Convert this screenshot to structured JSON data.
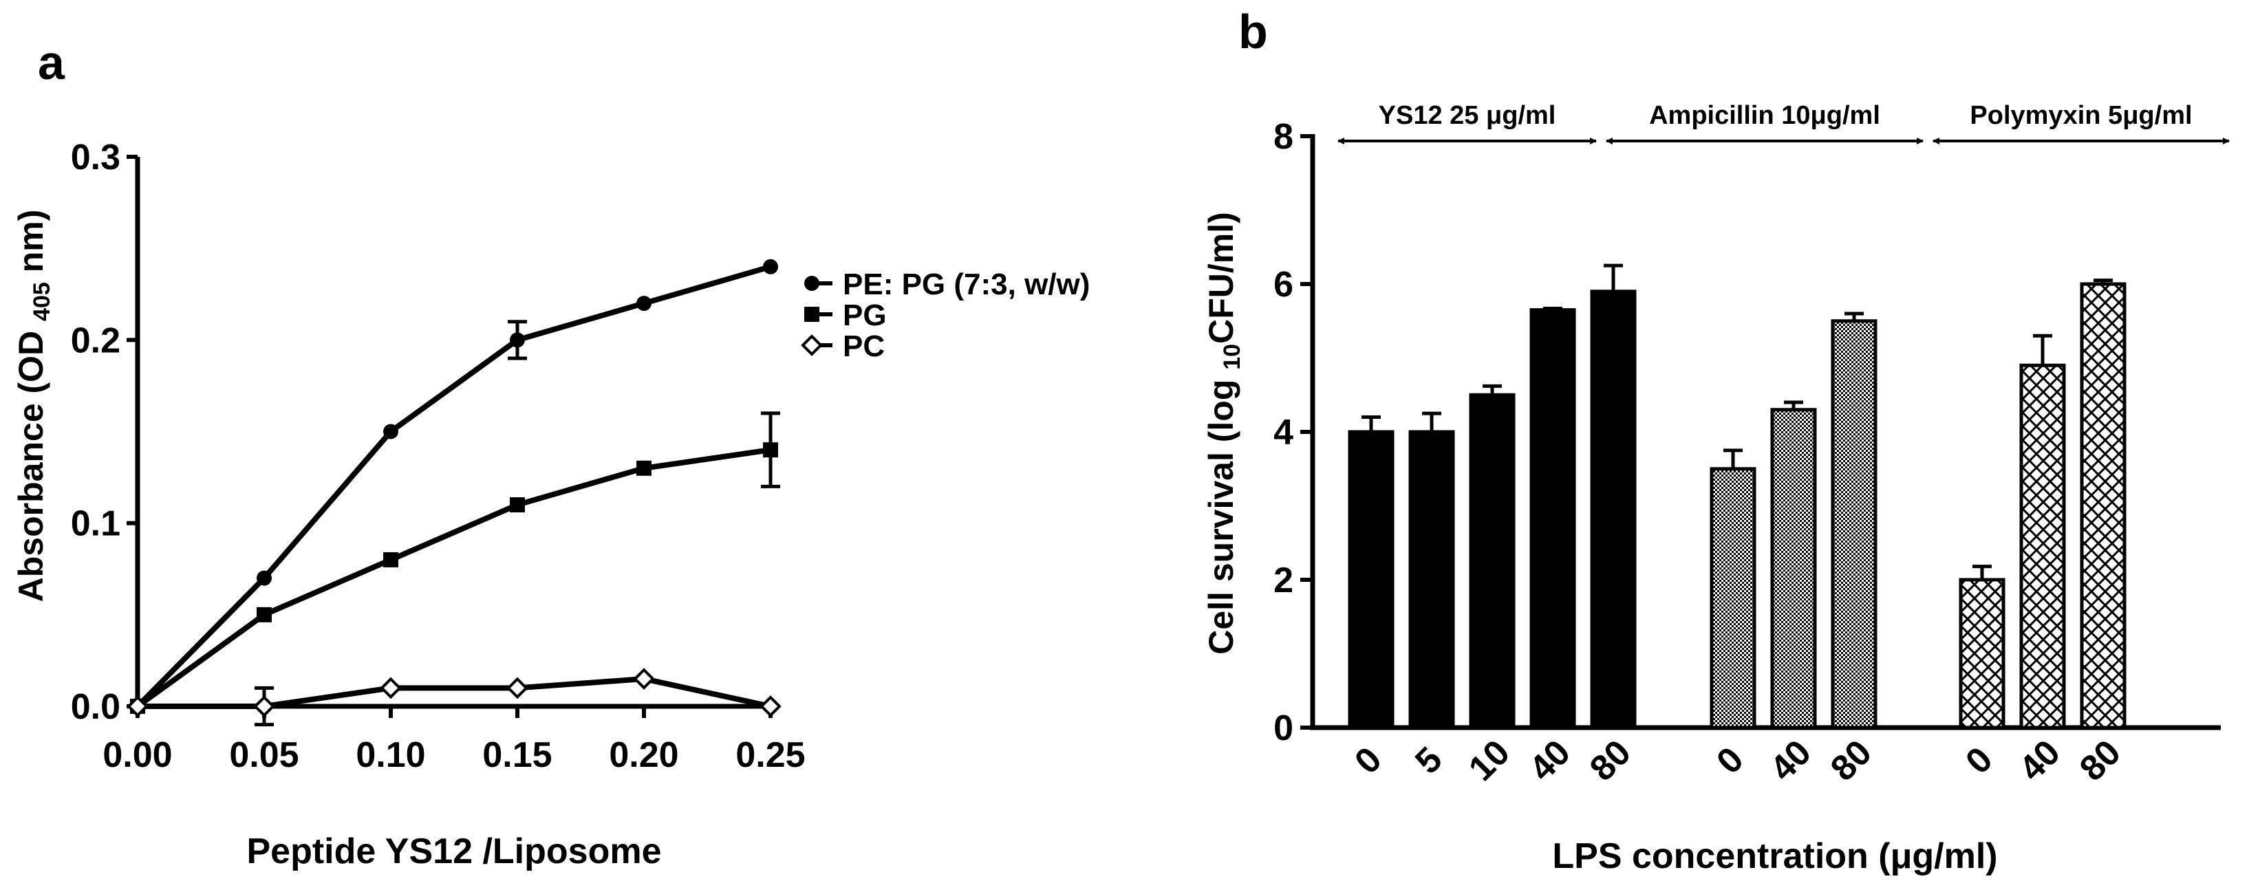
{
  "panels": {
    "a": {
      "label": "a"
    },
    "b": {
      "label": "b"
    }
  },
  "chart_data": [
    {
      "panel": "a",
      "type": "line",
      "xlabel": "Peptide YS12 /Liposome",
      "ylabel": "Absorbance (OD 405 nm)",
      "ylabel_parts": [
        "Absorbance (OD ",
        "405",
        " nm)"
      ],
      "xlim": [
        0,
        0.25
      ],
      "ylim": [
        0,
        0.3
      ],
      "x_ticks": [
        0,
        0.05,
        0.1,
        0.15,
        0.2,
        0.25
      ],
      "x_tick_labels": [
        "0.00",
        "0.05",
        "0.10",
        "0.15",
        "0.20",
        "0.25"
      ],
      "y_ticks": [
        0,
        0.1,
        0.2,
        0.3
      ],
      "y_tick_labels": [
        "0.0",
        "0.1",
        "0.2",
        "0.3"
      ],
      "legend_position": "right",
      "x": [
        0,
        0.05,
        0.1,
        0.15,
        0.2,
        0.25
      ],
      "series": [
        {
          "name": "PE: PG (7:3, w/w)",
          "marker": "circle",
          "values": [
            0,
            0.07,
            0.15,
            0.2,
            0.22,
            0.24
          ],
          "errors": [
            0,
            0,
            0,
            0.01,
            0,
            0
          ]
        },
        {
          "name": "PG",
          "marker": "square",
          "values": [
            0,
            0.05,
            0.08,
            0.11,
            0.13,
            0.14
          ],
          "errors": [
            0,
            0,
            0,
            0,
            0,
            0.02
          ]
        },
        {
          "name": "PC",
          "marker": "diamond",
          "values": [
            0,
            0,
            0.01,
            0.01,
            0.015,
            0
          ],
          "errors": [
            0,
            0.01,
            0,
            0,
            0,
            0
          ]
        }
      ]
    },
    {
      "panel": "b",
      "type": "bar",
      "xlabel": "LPS concentration (μg/ml)",
      "ylabel": "Cell survival (log 10CFU/ml)",
      "ylabel_parts": [
        "Cell survival (log ",
        "10",
        "CFU/ml)"
      ],
      "ylim": [
        0,
        8
      ],
      "y_ticks": [
        0,
        2,
        4,
        6,
        8
      ],
      "y_tick_labels": [
        "0",
        "2",
        "4",
        "6",
        "8"
      ],
      "groups": [
        {
          "name": "YS12 25 μg/ml",
          "pattern": "solid",
          "categories": [
            "0",
            "5",
            "10",
            "40",
            "80"
          ],
          "values": [
            4.0,
            4.0,
            4.5,
            5.65,
            5.9
          ],
          "errors": [
            0.2,
            0.25,
            0.12,
            0.02,
            0.35
          ]
        },
        {
          "name": "Ampicillin 10μg/ml",
          "pattern": "stipple",
          "categories": [
            "0",
            "40",
            "80"
          ],
          "values": [
            3.5,
            4.3,
            5.5
          ],
          "errors": [
            0.25,
            0.1,
            0.1
          ]
        },
        {
          "name": "Polymyxin 5μg/ml",
          "pattern": "crosshatch",
          "categories": [
            "0",
            "40",
            "80"
          ],
          "values": [
            2.0,
            4.9,
            6.0
          ],
          "errors": [
            0.18,
            0.4,
            0.05
          ]
        }
      ]
    }
  ]
}
